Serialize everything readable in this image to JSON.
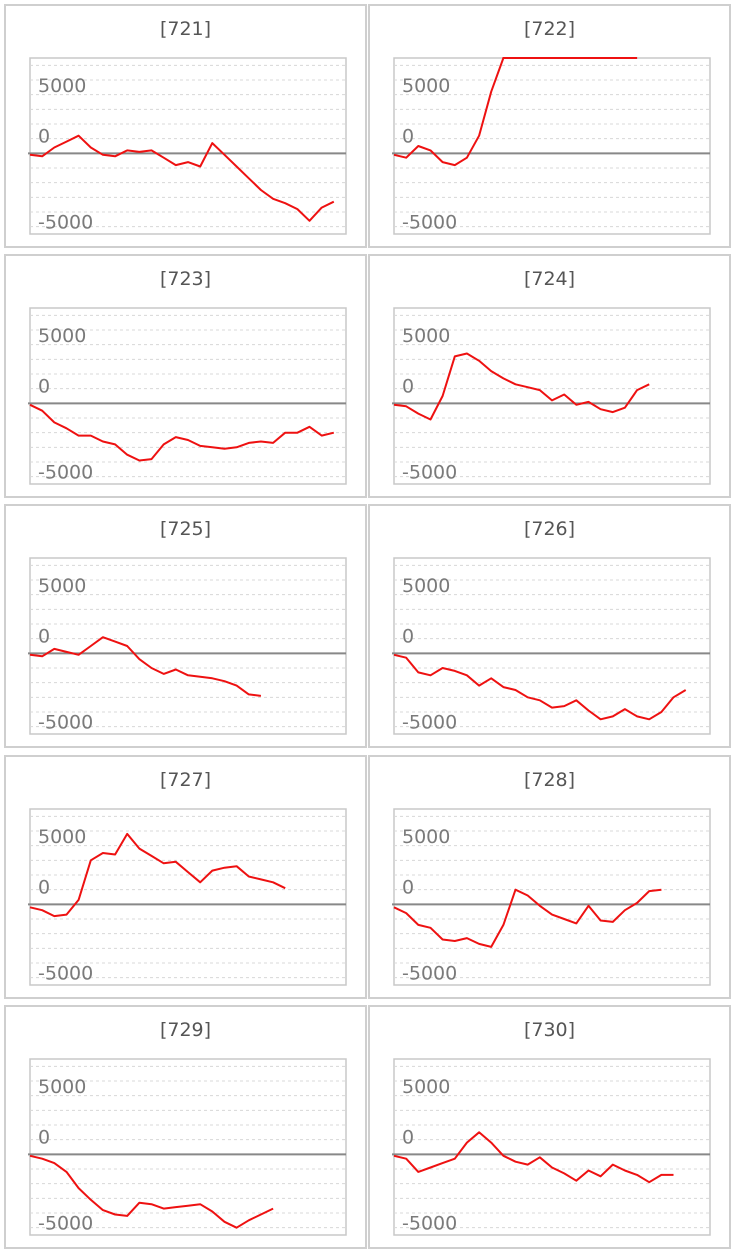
{
  "colors": {
    "line": "#ee1111",
    "zero_line": "#888888",
    "grid": "#d8d8d8",
    "frame": "#c8c8c8",
    "tick_text": "#7a7a7a"
  },
  "chart_data": [
    {
      "type": "line",
      "title": "[721]",
      "ylim": [
        -5500,
        6500
      ],
      "yticks": [
        5000,
        0,
        -5000
      ],
      "grid": true,
      "x": [
        0,
        1,
        2,
        3,
        4,
        5,
        6,
        7,
        8,
        9,
        10,
        11,
        12,
        13,
        14,
        15,
        16,
        17,
        18,
        19,
        20,
        21,
        22,
        23,
        24,
        25,
        26
      ],
      "values": [
        -100,
        -200,
        400,
        800,
        1200,
        400,
        -100,
        -200,
        200,
        100,
        200,
        -300,
        -800,
        -600,
        -900,
        700,
        -100,
        -900,
        -1700,
        -2500,
        -3100,
        -3400,
        -3800,
        -4600,
        -3700,
        -3300,
        null
      ]
    },
    {
      "type": "line",
      "title": "[722]",
      "ylim": [
        -5500,
        6500
      ],
      "yticks": [
        5000,
        0,
        -5000
      ],
      "grid": true,
      "note_line_value": 6500,
      "x": [
        0,
        1,
        2,
        3,
        4,
        5,
        6,
        7,
        8,
        9,
        10,
        11,
        12,
        13,
        14,
        15,
        16,
        17,
        18,
        19,
        20,
        21,
        22,
        23,
        24,
        25,
        26
      ],
      "values": [
        -100,
        -300,
        500,
        200,
        -600,
        -800,
        -300,
        1200,
        4200,
        6500,
        6500,
        6500,
        6500,
        6500,
        6500,
        6500,
        6500,
        6500,
        6500,
        6500,
        6500,
        null,
        null,
        null,
        null,
        null,
        null
      ]
    },
    {
      "type": "line",
      "title": "[723]",
      "ylim": [
        -5500,
        6500
      ],
      "yticks": [
        5000,
        0,
        -5000
      ],
      "grid": true,
      "x": [
        0,
        1,
        2,
        3,
        4,
        5,
        6,
        7,
        8,
        9,
        10,
        11,
        12,
        13,
        14,
        15,
        16,
        17,
        18,
        19,
        20,
        21,
        22,
        23,
        24,
        25,
        26
      ],
      "values": [
        -100,
        -500,
        -1300,
        -1700,
        -2200,
        -2200,
        -2600,
        -2800,
        -3500,
        -3900,
        -3800,
        -2800,
        -2300,
        -2500,
        -2900,
        -3000,
        -3100,
        -3000,
        -2700,
        -2600,
        -2700,
        -2000,
        -2000,
        -1600,
        -2200,
        -2000,
        null
      ]
    },
    {
      "type": "line",
      "title": "[724]",
      "ylim": [
        -5500,
        6500
      ],
      "yticks": [
        5000,
        0,
        -5000
      ],
      "grid": true,
      "x": [
        0,
        1,
        2,
        3,
        4,
        5,
        6,
        7,
        8,
        9,
        10,
        11,
        12,
        13,
        14,
        15,
        16,
        17,
        18,
        19,
        20,
        21,
        22,
        23,
        24,
        25,
        26
      ],
      "values": [
        -100,
        -200,
        -700,
        -1100,
        500,
        3200,
        3400,
        2900,
        2200,
        1700,
        1300,
        1100,
        900,
        200,
        600,
        -100,
        100,
        -400,
        -600,
        -300,
        900,
        1300,
        null,
        null,
        null,
        null,
        null
      ]
    },
    {
      "type": "line",
      "title": "[725]",
      "ylim": [
        -5500,
        6500
      ],
      "yticks": [
        5000,
        0,
        -5000
      ],
      "grid": true,
      "x": [
        0,
        1,
        2,
        3,
        4,
        5,
        6,
        7,
        8,
        9,
        10,
        11,
        12,
        13,
        14,
        15,
        16,
        17,
        18,
        19,
        20,
        21,
        22,
        23,
        24,
        25,
        26
      ],
      "values": [
        -100,
        -200,
        300,
        100,
        -100,
        500,
        1100,
        800,
        500,
        -400,
        -1000,
        -1400,
        -1100,
        -1500,
        -1600,
        -1700,
        -1900,
        -2200,
        -2800,
        -2900,
        null,
        null,
        null,
        null,
        null,
        null,
        null
      ]
    },
    {
      "type": "line",
      "title": "[726]",
      "ylim": [
        -5500,
        6500
      ],
      "yticks": [
        5000,
        0,
        -5000
      ],
      "grid": true,
      "x": [
        0,
        1,
        2,
        3,
        4,
        5,
        6,
        7,
        8,
        9,
        10,
        11,
        12,
        13,
        14,
        15,
        16,
        17,
        18,
        19,
        20,
        21,
        22,
        23,
        24,
        25,
        26
      ],
      "values": [
        -100,
        -300,
        -1300,
        -1500,
        -1000,
        -1200,
        -1500,
        -2200,
        -1700,
        -2300,
        -2500,
        -3000,
        -3200,
        -3700,
        -3600,
        -3200,
        -3900,
        -4500,
        -4300,
        -3800,
        -4300,
        -4500,
        -4000,
        -3000,
        -2500,
        null,
        null
      ]
    },
    {
      "type": "line",
      "title": "[727]",
      "ylim": [
        -5500,
        6500
      ],
      "yticks": [
        5000,
        0,
        -5000
      ],
      "grid": true,
      "x": [
        0,
        1,
        2,
        3,
        4,
        5,
        6,
        7,
        8,
        9,
        10,
        11,
        12,
        13,
        14,
        15,
        16,
        17,
        18,
        19,
        20,
        21,
        22,
        23,
        24,
        25,
        26
      ],
      "values": [
        -200,
        -400,
        -800,
        -700,
        300,
        3000,
        3500,
        3400,
        4800,
        3800,
        3300,
        2800,
        2900,
        2200,
        1500,
        2300,
        2500,
        2600,
        1900,
        1700,
        1500,
        1100,
        null,
        null,
        null,
        null,
        null
      ]
    },
    {
      "type": "line",
      "title": "[728]",
      "ylim": [
        -5500,
        6500
      ],
      "yticks": [
        5000,
        0,
        -5000
      ],
      "grid": true,
      "x": [
        0,
        1,
        2,
        3,
        4,
        5,
        6,
        7,
        8,
        9,
        10,
        11,
        12,
        13,
        14,
        15,
        16,
        17,
        18,
        19,
        20,
        21,
        22,
        23,
        24,
        25,
        26
      ],
      "values": [
        -200,
        -600,
        -1400,
        -1600,
        -2400,
        -2500,
        -2300,
        -2700,
        -2900,
        -1400,
        1000,
        600,
        -100,
        -700,
        -1000,
        -1300,
        -100,
        -1100,
        -1200,
        -400,
        100,
        900,
        1000,
        null,
        null,
        null,
        null
      ]
    },
    {
      "type": "line",
      "title": "[729]",
      "ylim": [
        -5500,
        6500
      ],
      "yticks": [
        5000,
        0,
        -5000
      ],
      "grid": true,
      "x": [
        0,
        1,
        2,
        3,
        4,
        5,
        6,
        7,
        8,
        9,
        10,
        11,
        12,
        13,
        14,
        15,
        16,
        17,
        18,
        19,
        20,
        21,
        22,
        23,
        24,
        25,
        26
      ],
      "values": [
        -100,
        -300,
        -600,
        -1200,
        -2300,
        -3100,
        -3800,
        -4100,
        -4200,
        -3300,
        -3400,
        -3700,
        -3600,
        -3500,
        -3400,
        -3900,
        -4600,
        -5000,
        -4500,
        -4100,
        -3700,
        null,
        null,
        null,
        null,
        null,
        null
      ]
    },
    {
      "type": "line",
      "title": "[730]",
      "ylim": [
        -5500,
        6500
      ],
      "yticks": [
        5000,
        0,
        -5000
      ],
      "grid": true,
      "x": [
        0,
        1,
        2,
        3,
        4,
        5,
        6,
        7,
        8,
        9,
        10,
        11,
        12,
        13,
        14,
        15,
        16,
        17,
        18,
        19,
        20,
        21,
        22,
        23,
        24,
        25,
        26
      ],
      "values": [
        -100,
        -300,
        -1200,
        -900,
        -600,
        -300,
        800,
        1500,
        800,
        -100,
        -500,
        -700,
        -200,
        -900,
        -1300,
        -1800,
        -1100,
        -1500,
        -700,
        -1100,
        -1400,
        -1900,
        -1400,
        -1400,
        null,
        null,
        null
      ]
    }
  ]
}
